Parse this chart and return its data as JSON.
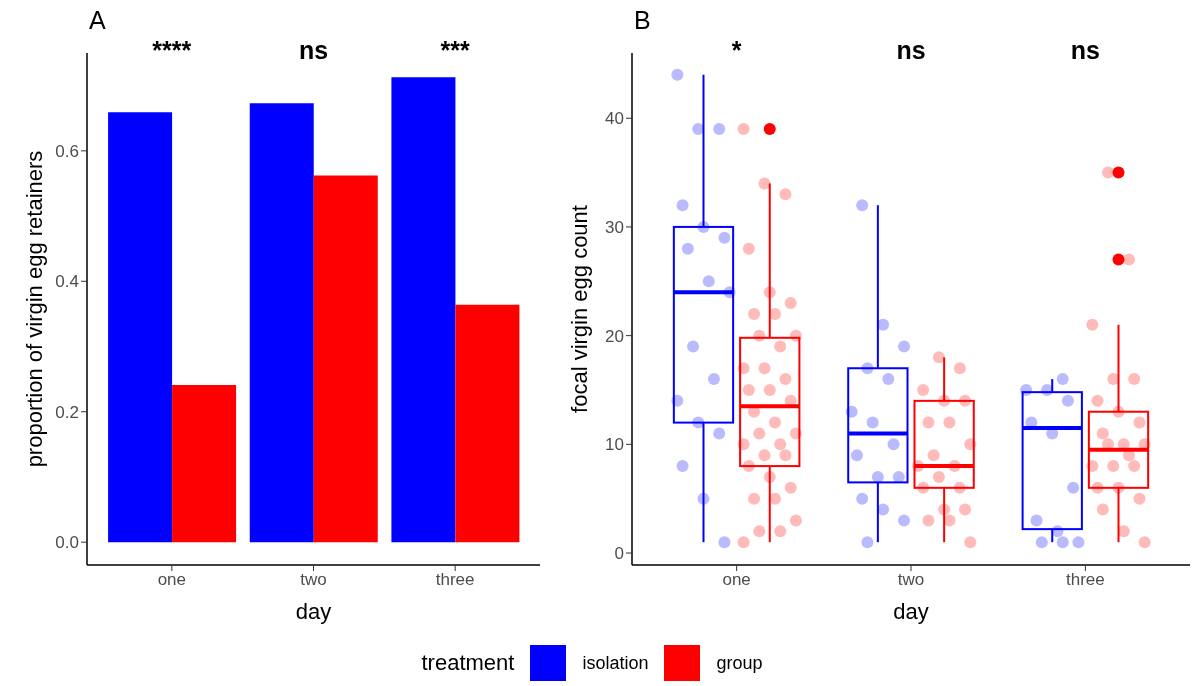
{
  "chart_data": [
    {
      "type": "bar",
      "title": "A",
      "xlabel": "day",
      "ylabel": "proportion of virgin egg retainers",
      "categories": [
        "one",
        "two",
        "three"
      ],
      "ylim": [
        -0.035,
        0.75
      ],
      "yticks": [
        {
          "value": 0,
          "label": "0.0"
        },
        0.2,
        0.4,
        0.6
      ],
      "legend": "bottom",
      "legend_title": "treatment",
      "annotations": [
        "****",
        "ns",
        "***"
      ],
      "series": [
        {
          "name": "isolation",
          "color": "#0000ff",
          "values": [
            0.659,
            0.673,
            0.713
          ]
        },
        {
          "name": "group",
          "color": "#ff0000",
          "values": [
            0.241,
            0.562,
            0.364
          ]
        }
      ]
    },
    {
      "type": "box",
      "title": "B",
      "xlabel": "day",
      "ylabel": "focal virgin egg count",
      "categories": [
        "one",
        "two",
        "three"
      ],
      "ylim": [
        -1.1,
        46
      ],
      "yticks": [
        0,
        10,
        20,
        30,
        40
      ],
      "annotations": [
        "*",
        "ns",
        "ns"
      ],
      "series": [
        {
          "type": "scatter",
          "color": "#b3b3ff",
          "x": [
            "one",
            "one",
            "one",
            "one",
            "one",
            "one",
            "one",
            "one",
            "one",
            "one",
            "one",
            "one",
            "one",
            "one",
            "one",
            "one",
            "one",
            "two",
            "two",
            "two",
            "two",
            "two",
            "two",
            "two",
            "two",
            "two",
            "two",
            "two",
            "two",
            "two",
            "two",
            "two",
            "three",
            "three",
            "three",
            "three",
            "three",
            "three",
            "three",
            "three",
            "three",
            "three",
            "three",
            "three"
          ],
          "values": [
            44,
            39,
            39,
            32,
            30,
            29,
            28,
            25,
            24,
            19,
            16,
            14,
            12,
            11,
            8,
            5,
            1,
            32,
            21,
            19,
            17,
            16,
            13,
            12,
            10,
            9,
            7,
            7,
            5,
            4,
            3,
            1,
            16,
            15,
            15,
            14,
            12,
            11,
            6,
            3,
            2,
            1,
            1,
            1
          ]
        },
        {
          "type": "scatter",
          "color": "#ffb3b3",
          "x": [
            "one",
            "one",
            "one",
            "one",
            "one",
            "one",
            "one",
            "one",
            "one",
            "one",
            "one",
            "one",
            "one",
            "one",
            "one",
            "one",
            "one",
            "one",
            "one",
            "one",
            "one",
            "one",
            "one",
            "one",
            "one",
            "one",
            "one",
            "one",
            "one",
            "one",
            "one",
            "one",
            "one",
            "one",
            "two",
            "two",
            "two",
            "two",
            "two",
            "two",
            "two",
            "two",
            "two",
            "two",
            "two",
            "two",
            "two",
            "two",
            "two",
            "two",
            "two",
            "two",
            "two",
            "three",
            "three",
            "three",
            "three",
            "three",
            "three",
            "three",
            "three",
            "three",
            "three",
            "three",
            "three",
            "three",
            "three",
            "three",
            "three",
            "three",
            "three",
            "three",
            "three",
            "three",
            "three"
          ],
          "values": [
            39,
            34,
            33,
            28,
            24,
            23,
            22,
            22,
            20,
            20,
            19,
            17,
            17,
            16,
            15,
            15,
            14,
            13,
            12,
            11,
            11,
            10,
            10,
            9,
            9,
            8,
            7,
            6,
            5,
            5,
            3,
            2,
            2,
            1,
            18,
            17,
            15,
            14,
            14,
            12,
            12,
            10,
            9,
            8,
            8,
            7,
            6,
            6,
            4,
            4,
            3,
            3,
            1,
            35,
            27,
            21,
            16,
            16,
            14,
            13,
            12,
            11,
            10,
            10,
            10,
            9,
            8,
            8,
            8,
            6,
            6,
            5,
            4,
            2,
            1
          ]
        },
        {
          "color": "#0000ff",
          "boxes": [
            {
              "low": 1,
              "q1": 12,
              "median": 24,
              "q3": 30,
              "high": 44
            },
            {
              "low": 1,
              "q1": 6.5,
              "median": 11,
              "q3": 17,
              "high": 32
            },
            {
              "low": 1,
              "q1": 2.2,
              "median": 11.5,
              "q3": 14.8,
              "high": 16
            }
          ]
        },
        {
          "color": "#ff0000",
          "boxes": [
            {
              "low": 1,
              "q1": 8,
              "median": 13.5,
              "q3": 19.8,
              "high": 34,
              "outliers": [
                39
              ]
            },
            {
              "low": 1,
              "q1": 6,
              "median": 8,
              "q3": 14,
              "high": 18
            },
            {
              "low": 1,
              "q1": 6,
              "median": 9.5,
              "q3": 13,
              "high": 21,
              "outliers": [
                27,
                35
              ]
            }
          ]
        }
      ]
    }
  ]
}
